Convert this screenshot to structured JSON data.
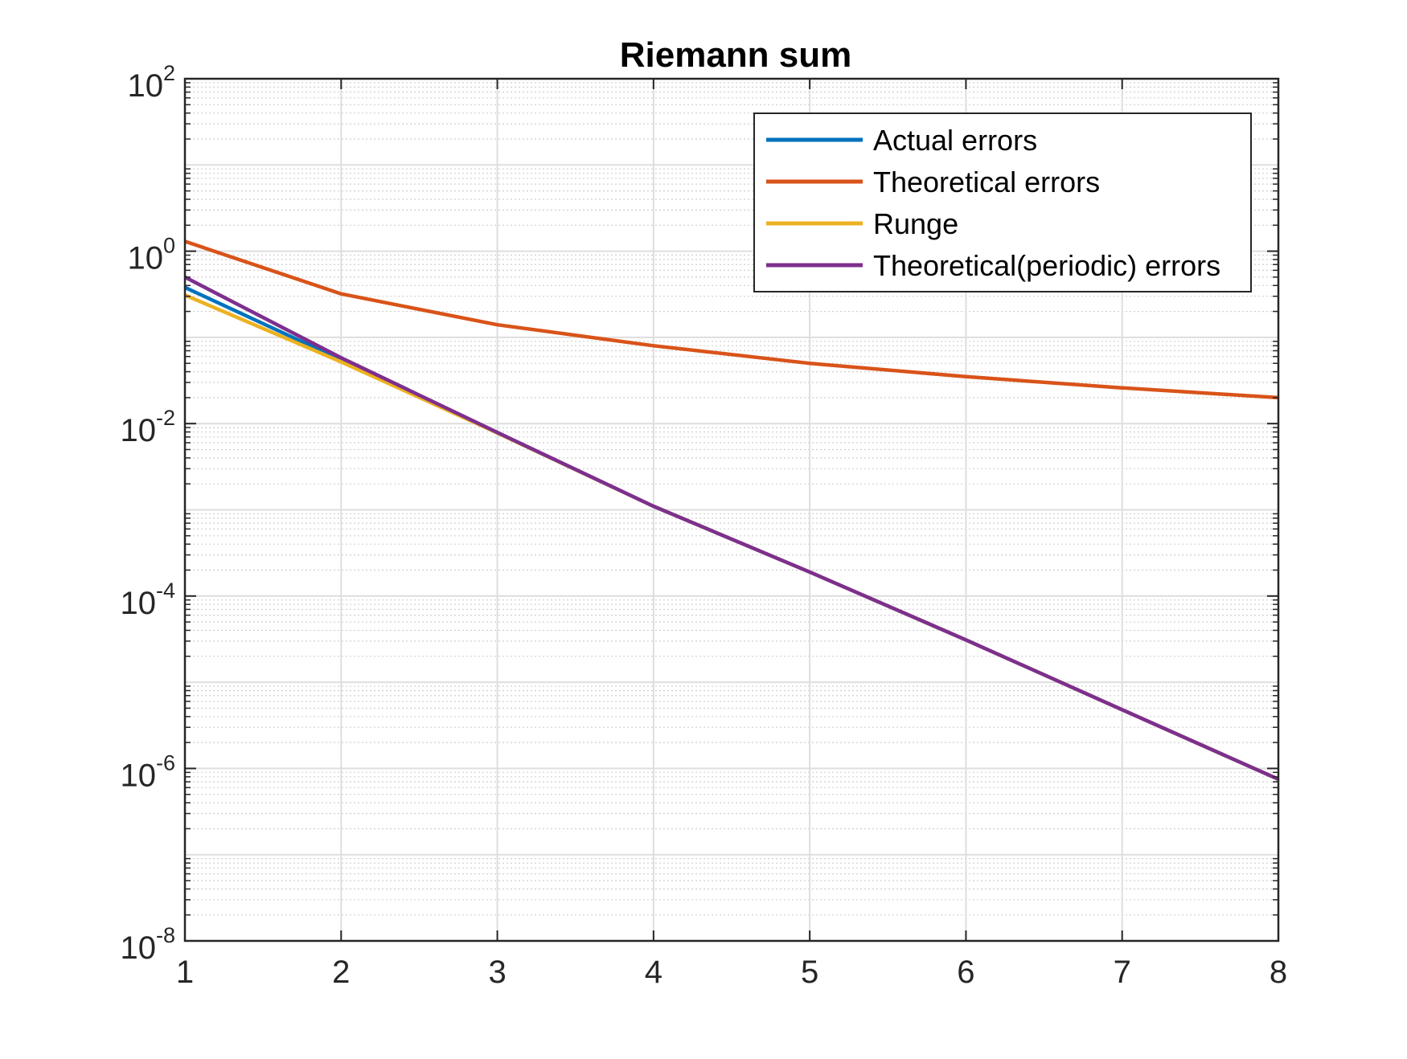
{
  "chart_data": {
    "type": "line",
    "title": "Riemann sum",
    "xlabel": "",
    "ylabel": "",
    "yscale": "log",
    "xlim": [
      1,
      8
    ],
    "ylim": [
      1e-08,
      100
    ],
    "x_ticks": [
      1,
      2,
      3,
      4,
      5,
      6,
      7,
      8
    ],
    "y_ticks": [
      {
        "value": 100,
        "base": "10",
        "exp": "2"
      },
      {
        "value": 1,
        "base": "10",
        "exp": "0"
      },
      {
        "value": 0.01,
        "base": "10",
        "exp": "-2"
      },
      {
        "value": 0.0001,
        "base": "10",
        "exp": "-4"
      },
      {
        "value": 1e-06,
        "base": "10",
        "exp": "-6"
      },
      {
        "value": 1e-08,
        "base": "10",
        "exp": "-8"
      }
    ],
    "grid": true,
    "minor_grid": true,
    "legend_position": "top-right",
    "x": [
      1,
      2,
      3,
      4,
      5,
      6,
      7,
      8
    ],
    "series": [
      {
        "name": "Actual errors",
        "color": "#0072BD",
        "values": [
          0.38,
          0.055,
          0.0078,
          0.0011,
          0.00019,
          3.1e-05,
          4.8e-06,
          7.5e-07
        ]
      },
      {
        "name": "Theoretical errors",
        "color": "#D95319",
        "values": [
          1.3,
          0.32,
          0.14,
          0.08,
          0.05,
          0.035,
          0.026,
          0.02
        ]
      },
      {
        "name": "Runge",
        "color": "#EDB120",
        "values": [
          0.31,
          0.052,
          0.0078,
          0.0011,
          0.00019,
          3.1e-05,
          4.8e-06,
          7.5e-07
        ]
      },
      {
        "name": "Theoretical(periodic) errors",
        "color": "#7E2F8E",
        "values": [
          0.5,
          0.058,
          0.0079,
          0.0011,
          0.00019,
          3.1e-05,
          4.8e-06,
          7.5e-07
        ]
      }
    ]
  }
}
